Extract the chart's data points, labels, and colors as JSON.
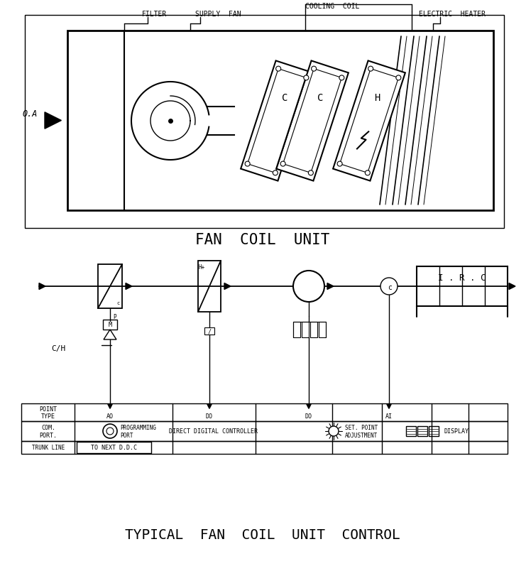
{
  "title_top": "FAN  COIL  UNIT",
  "title_bottom": "TYPICAL  FAN  COIL  UNIT  CONTROL",
  "bg_color": "#ffffff",
  "line_color": "#000000",
  "labels": {
    "filter": "FILTER",
    "supply_fan": "SUPPLY  FAN",
    "cooling_coil": "COOLING  COIL",
    "electric_heater": "ELECTRIC  HEATER",
    "oa": "O.A",
    "ch": "C/H",
    "point_type": "POINT\nTYPE",
    "com_port": "COM.\nPORT.",
    "trunk_line": "TRUNK LINE",
    "to_next": "TO NEXT D.D.C",
    "prog_port": "PROGRAMMING\nPORT",
    "ddc": "DIRECT DIGITAL CONTROLLER",
    "set_point": "SET. POINT\nADJUSTMENT",
    "display": "DISPLAY",
    "irc": "I . R . C",
    "ao": "AO",
    "do1": "DO",
    "do2": "DO",
    "ai": "AI"
  }
}
